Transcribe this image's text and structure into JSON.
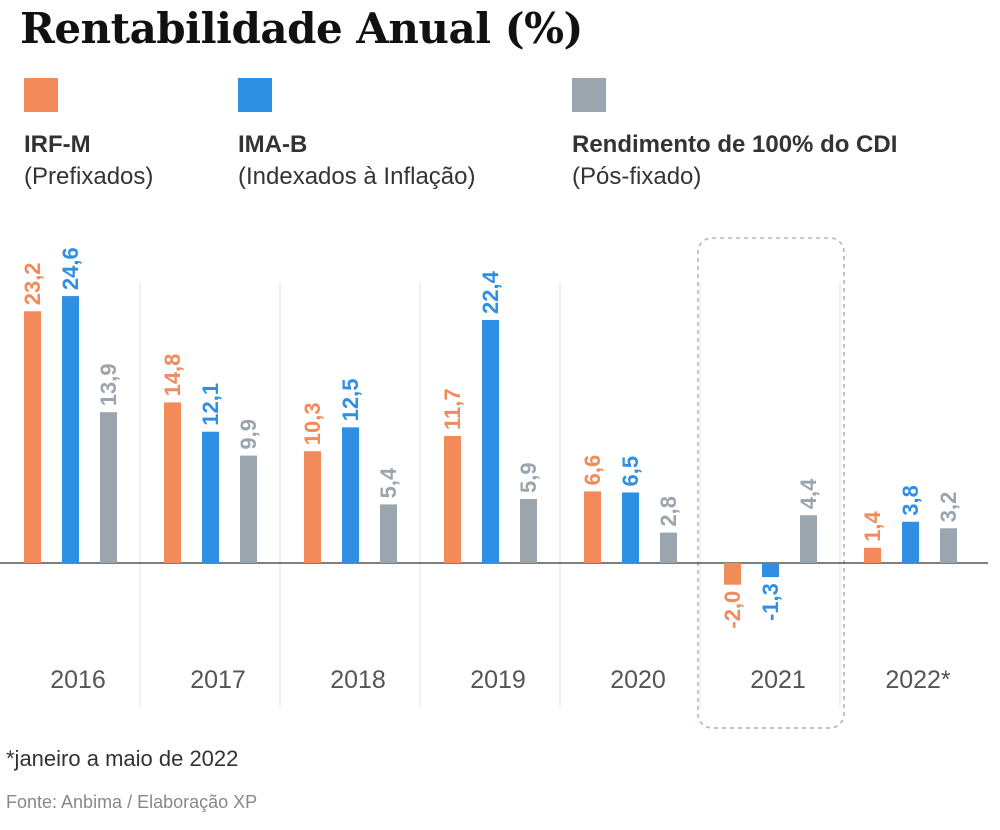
{
  "chart_data": {
    "type": "bar",
    "title": "Rentabilidade Anual (%)",
    "categories": [
      "2016",
      "2017",
      "2018",
      "2019",
      "2020",
      "2021",
      "2022*"
    ],
    "series": [
      {
        "name": "IRF-M",
        "subtitle": "(Prefixados)",
        "color": "#f28a5a",
        "values": [
          23.2,
          14.8,
          10.3,
          11.7,
          6.6,
          -2.0,
          1.4
        ],
        "labels": [
          "23,2",
          "14,8",
          "10,3",
          "11,7",
          "6,6",
          "-2,0",
          "1,4"
        ]
      },
      {
        "name": "IMA-B",
        "subtitle": "(Indexados à Inflação)",
        "color": "#2f8fe3",
        "values": [
          24.6,
          12.1,
          12.5,
          22.4,
          6.5,
          -1.3,
          3.8
        ],
        "labels": [
          "24,6",
          "12,1",
          "12,5",
          "22,4",
          "6,5",
          "-1,3",
          "3,8"
        ]
      },
      {
        "name": "Rendimento de 100% do CDI",
        "subtitle": "(Pós-fixado)",
        "color": "#9aa5ad",
        "values": [
          13.9,
          9.9,
          5.4,
          5.9,
          2.8,
          4.4,
          3.2
        ],
        "labels": [
          "13,9",
          "9,9",
          "5,4",
          "5,9",
          "2,8",
          "4,4",
          "3,2"
        ]
      }
    ],
    "highlighted_category": "2021",
    "legend_position": "top",
    "grid": false,
    "ylim": [
      -3,
      26
    ]
  },
  "footnote": "*janeiro a maio de 2022",
  "source": "Fonte: Anbima / Elaboração XP"
}
